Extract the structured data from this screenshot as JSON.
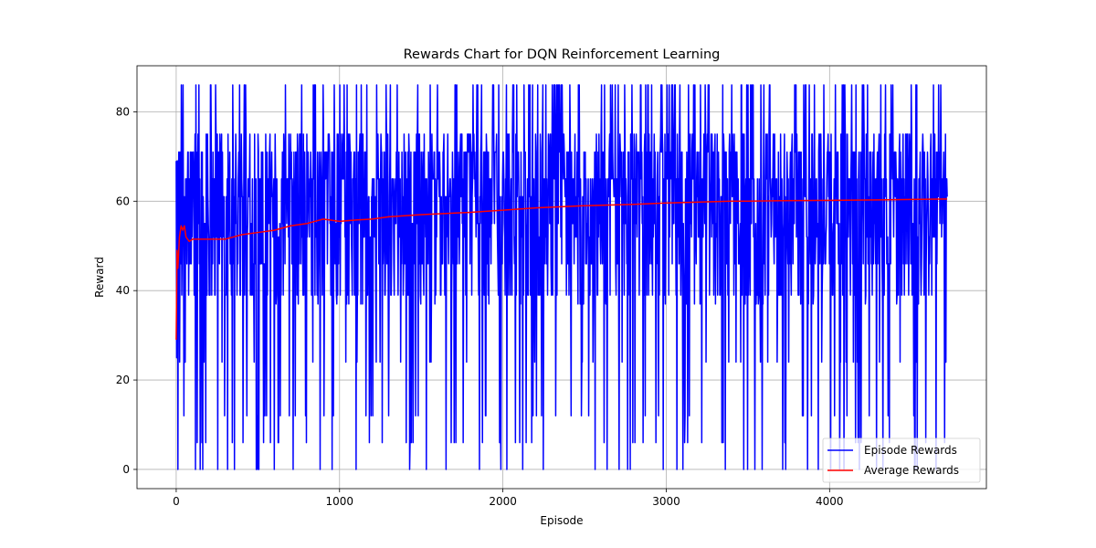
{
  "chart_data": {
    "type": "line",
    "title": "Rewards Chart for DQN Reinforcement Learning",
    "xlabel": "Episode",
    "ylabel": "Reward",
    "xlim": [
      -240,
      4960
    ],
    "ylim": [
      -4.3,
      90.3
    ],
    "xticks": [
      0,
      1000,
      2000,
      3000,
      4000
    ],
    "yticks": [
      0,
      20,
      40,
      60,
      80
    ],
    "grid": true,
    "legend_position": "lower-right",
    "series": [
      {
        "name": "Episode Rewards",
        "color": "#0000ff",
        "style": "noisy",
        "x_range": [
          0,
          4720
        ],
        "value_range": [
          0,
          86
        ],
        "typical_band": [
          39,
          71
        ],
        "frequent_levels": [
          0,
          6,
          12,
          24,
          37,
          39,
          46,
          52,
          55,
          61,
          65,
          71,
          75,
          86
        ]
      },
      {
        "name": "Average Rewards",
        "color": "#ff0000",
        "x": [
          0,
          5,
          10,
          20,
          30,
          40,
          50,
          60,
          70,
          80,
          100,
          150,
          200,
          300,
          400,
          500,
          600,
          700,
          800,
          850,
          900,
          1000,
          1100,
          1200,
          1300,
          1500,
          1800,
          2000,
          2200,
          2500,
          2800,
          3000,
          3200,
          3400,
          3500,
          3700,
          4000,
          4300,
          4500,
          4720
        ],
        "values": [
          29,
          49,
          45,
          52,
          54.5,
          53.5,
          54.5,
          52,
          51.5,
          51,
          51.5,
          51.5,
          51.5,
          51.5,
          52.5,
          53,
          53.5,
          54.5,
          55,
          55.5,
          56,
          55.5,
          55.8,
          56,
          56.5,
          57,
          57.5,
          58,
          58.5,
          59,
          59.3,
          59.6,
          59.8,
          60,
          60,
          60.1,
          60.2,
          60.3,
          60.4,
          60.5
        ]
      }
    ]
  }
}
